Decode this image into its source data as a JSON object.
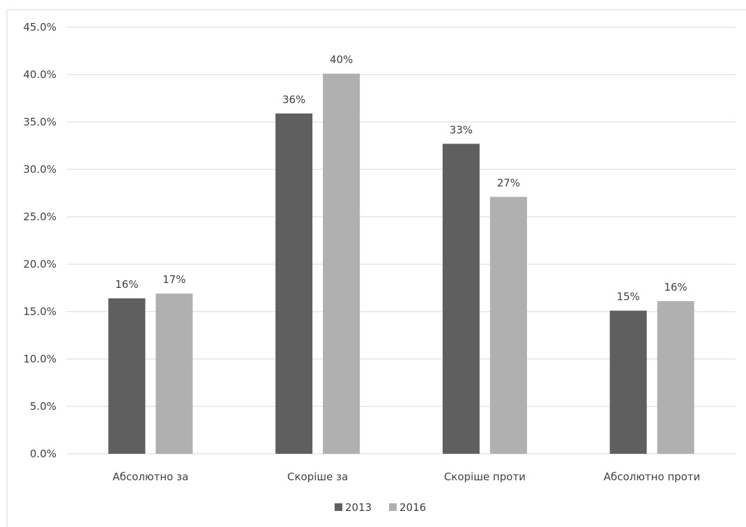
{
  "chart_data": {
    "type": "bar",
    "categories": [
      "Абсолютно за",
      "Скоріше за",
      "Скоріше проти",
      "Абсолютно проти"
    ],
    "series": [
      {
        "name": "2013",
        "values": [
          16.4,
          35.9,
          32.7,
          15.1
        ],
        "labels": [
          "16%",
          "36%",
          "33%",
          "15%"
        ],
        "color": "#5f5f5f"
      },
      {
        "name": "2016",
        "values": [
          16.9,
          40.1,
          27.1,
          16.1
        ],
        "labels": [
          "17%",
          "40%",
          "27%",
          "16%"
        ],
        "color": "#b0b0b0"
      }
    ],
    "yticks": [
      "0.0%",
      "5.0%",
      "10.0%",
      "15.0%",
      "20.0%",
      "25.0%",
      "30.0%",
      "35.0%",
      "40.0%",
      "45.0%"
    ],
    "ylim": [
      0,
      45
    ],
    "grid": true,
    "legend_position": "bottom",
    "gridline_color": "#d9d9d9"
  }
}
